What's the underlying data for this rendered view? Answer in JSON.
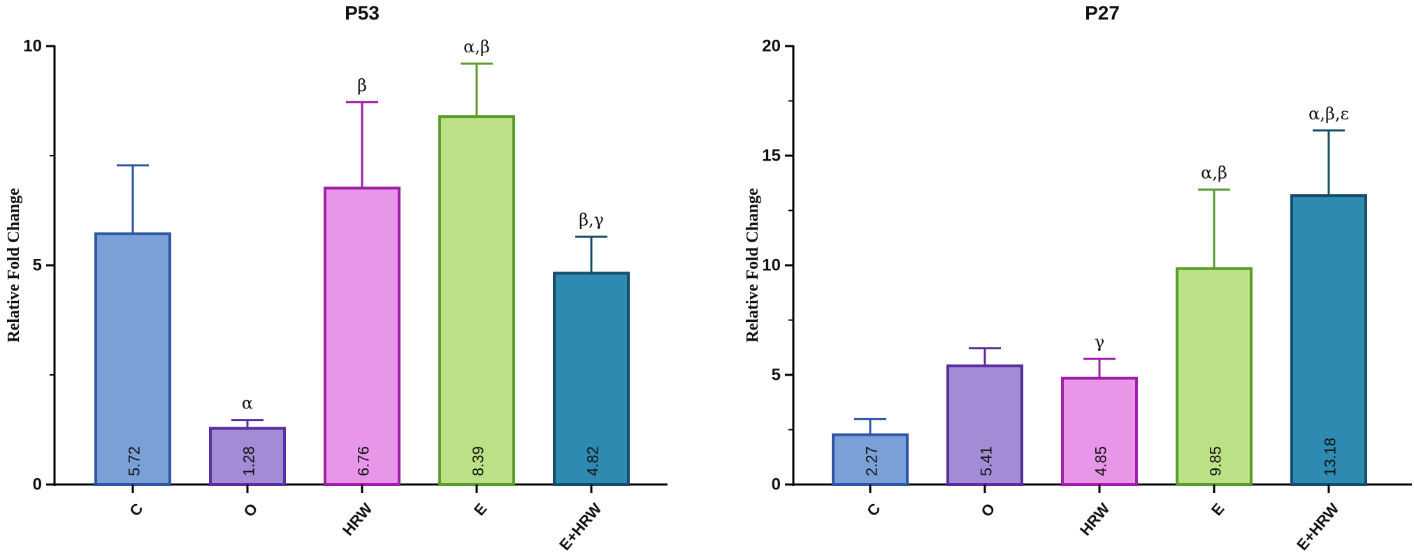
{
  "chart_data": [
    {
      "type": "bar",
      "title": "P53",
      "xlabel": "",
      "ylabel": "Relative Fold Change",
      "ylim": [
        0,
        10
      ],
      "yticks": [
        0,
        5,
        10
      ],
      "categories": [
        "C",
        "O",
        "HRW",
        "E",
        "E+HRW"
      ],
      "values": [
        5.72,
        1.28,
        6.76,
        8.39,
        4.82
      ],
      "value_labels": [
        "5.72",
        "1.28",
        "6.76",
        "8.39",
        "4.82"
      ],
      "error_upper": [
        7.28,
        1.47,
        8.72,
        9.6,
        5.65
      ],
      "annotations": [
        "",
        "α",
        "β",
        "α,β",
        "β,γ"
      ],
      "fill_colors": [
        "#7aa0d8",
        "#a48bd6",
        "#e896e8",
        "#bce086",
        "#2e8ab0"
      ],
      "stroke_colors": [
        "#2f55a4",
        "#5a2e9c",
        "#a11fa8",
        "#5a9a2e",
        "#174c6b"
      ],
      "grid": false
    },
    {
      "type": "bar",
      "title": "P27",
      "xlabel": "",
      "ylabel": "Relative Fold Change",
      "ylim": [
        0,
        20
      ],
      "yticks": [
        0,
        5,
        10,
        15,
        20
      ],
      "categories": [
        "C",
        "O",
        "HRW",
        "E",
        "E+HRW"
      ],
      "values": [
        2.27,
        5.41,
        4.85,
        9.85,
        13.18
      ],
      "value_labels": [
        "2.27",
        "5.41",
        "4.85",
        "9.85",
        "13.18"
      ],
      "error_upper": [
        2.98,
        6.22,
        5.73,
        13.45,
        16.15
      ],
      "annotations": [
        "",
        "",
        "γ",
        "α,β",
        "α,β,ε"
      ],
      "fill_colors": [
        "#7aa0d8",
        "#a48bd6",
        "#e896e8",
        "#bce086",
        "#2e8ab0"
      ],
      "stroke_colors": [
        "#2f55a4",
        "#5a2e9c",
        "#a11fa8",
        "#5a9a2e",
        "#174c6b"
      ],
      "grid": false
    }
  ]
}
